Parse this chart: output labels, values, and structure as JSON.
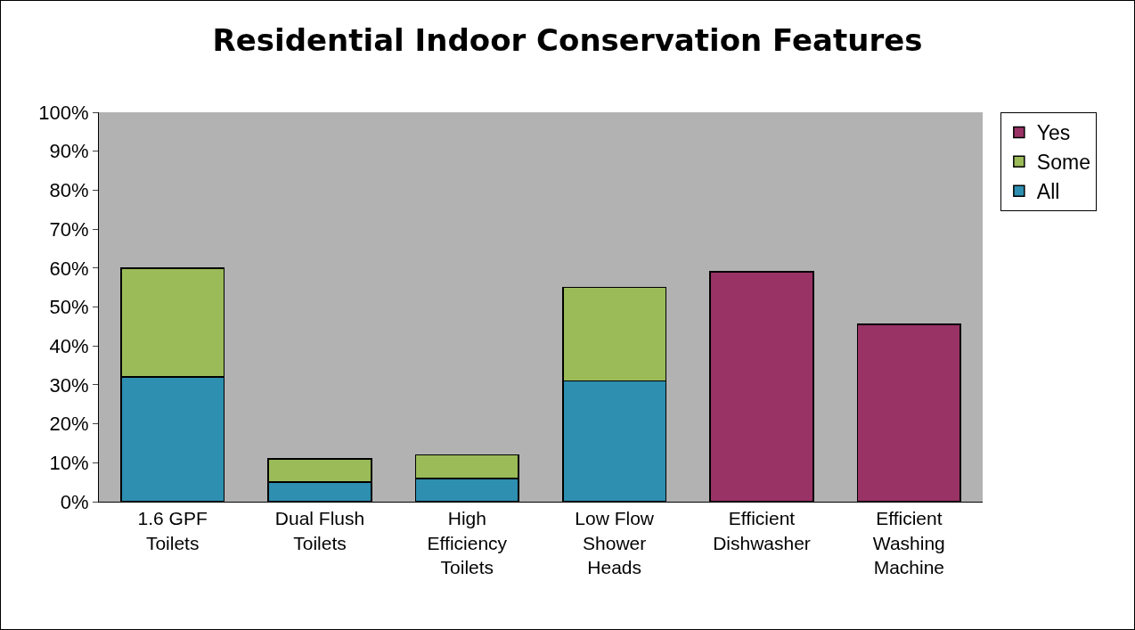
{
  "chart_data": {
    "type": "bar",
    "title": "Residential Indoor Conservation Features",
    "categories": [
      "1.6 GPF Toilets",
      "Dual Flush Toilets",
      "High Efficiency Toilets",
      "Low Flow Shower Heads",
      "Efficient Dishwasher",
      "Efficient Washing Machine"
    ],
    "series": [
      {
        "name": "All",
        "color": "#2e8fb0",
        "values": [
          32,
          5,
          6,
          31,
          null,
          null
        ]
      },
      {
        "name": "Some",
        "color": "#9bbb59",
        "values": [
          28,
          6,
          6,
          24,
          null,
          null
        ]
      },
      {
        "name": "Yes",
        "color": "#993366",
        "values": [
          null,
          null,
          null,
          null,
          59,
          45.5
        ]
      }
    ],
    "stacked": true,
    "ylim": [
      0,
      100
    ],
    "yticks": [
      {
        "value": 0,
        "label": "0%"
      },
      {
        "value": 10,
        "label": "10%"
      },
      {
        "value": 20,
        "label": "20%"
      },
      {
        "value": 30,
        "label": "30%"
      },
      {
        "value": 40,
        "label": "40%"
      },
      {
        "value": 50,
        "label": "50%"
      },
      {
        "value": 60,
        "label": "60%"
      },
      {
        "value": 70,
        "label": "70%"
      },
      {
        "value": 80,
        "label": "80%"
      },
      {
        "value": 90,
        "label": "90%"
      },
      {
        "value": 100,
        "label": "100%"
      }
    ],
    "legend": "top right"
  }
}
